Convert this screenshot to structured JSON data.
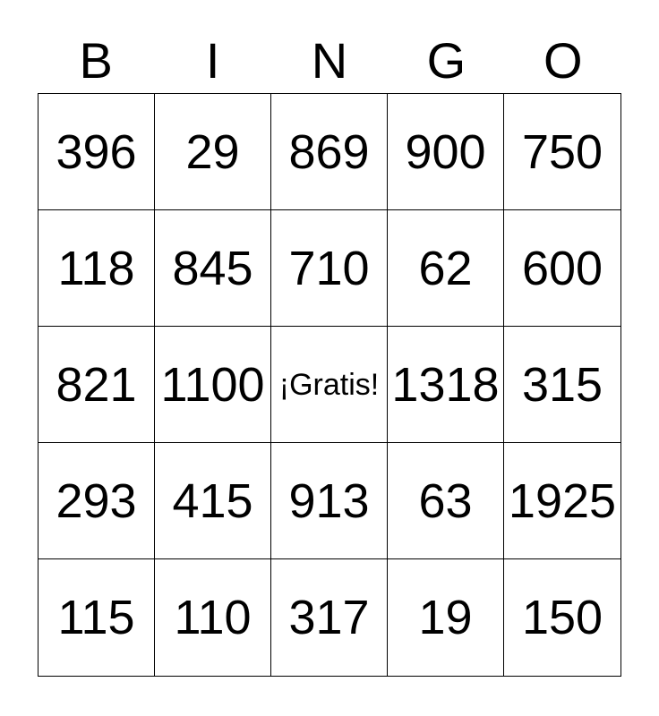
{
  "header": {
    "letters": [
      "B",
      "I",
      "N",
      "G",
      "O"
    ]
  },
  "card": {
    "rows": [
      [
        "396",
        "29",
        "869",
        "900",
        "750"
      ],
      [
        "118",
        "845",
        "710",
        "62",
        "600"
      ],
      [
        "821",
        "1100",
        "¡Gratis!",
        "1318",
        "315"
      ],
      [
        "293",
        "415",
        "913",
        "63",
        "1925"
      ],
      [
        "115",
        "110",
        "317",
        "19",
        "150"
      ]
    ],
    "free_space": {
      "row_index": 2,
      "col_index": 2,
      "label": "¡Gratis!"
    }
  },
  "colors": {
    "background": "#ffffff",
    "text": "#000000",
    "grid_border": "#000000"
  }
}
